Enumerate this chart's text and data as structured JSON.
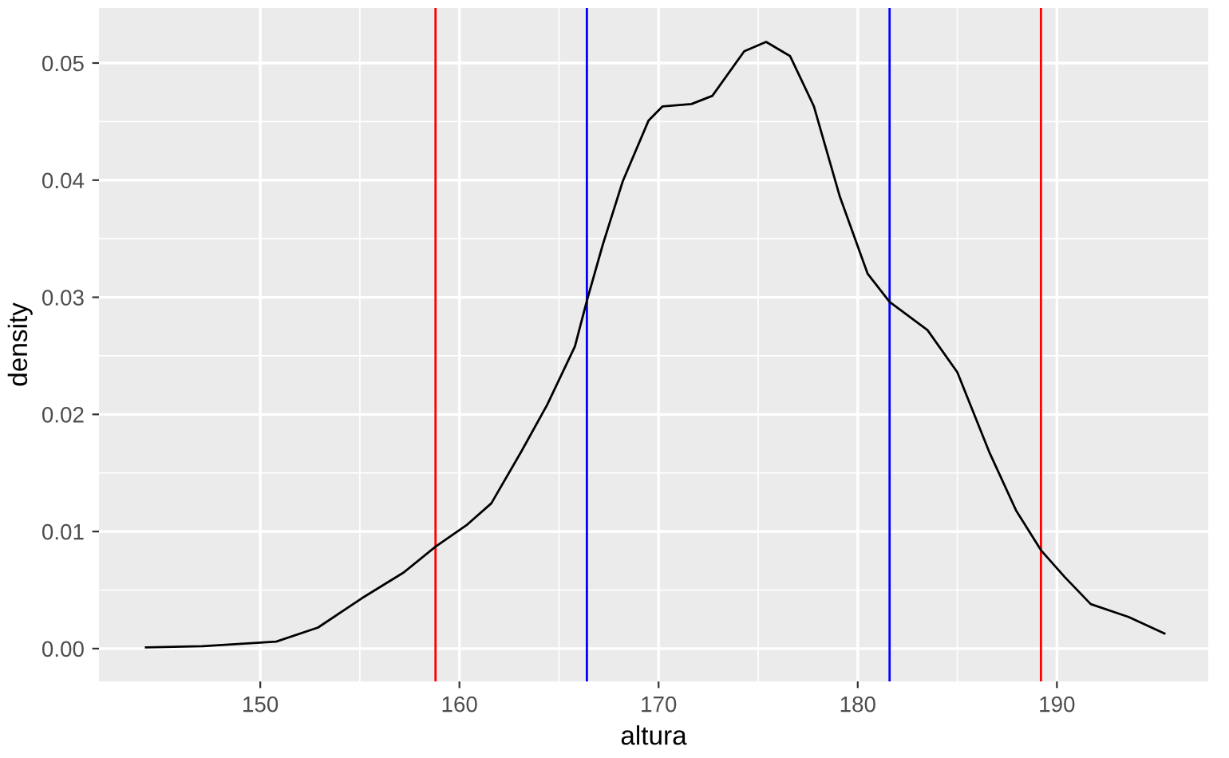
{
  "chart_data": {
    "type": "line",
    "xlabel": "altura",
    "ylabel": "density",
    "x": [
      144.26,
      147.07,
      150.8,
      152.9,
      155.1,
      157.2,
      158.8,
      160.4,
      161.6,
      163.1,
      164.4,
      165.8,
      166.4,
      167.2,
      168.2,
      169.5,
      170.2,
      171.65,
      172.7,
      174.3,
      175.4,
      176.6,
      177.8,
      179.1,
      180.5,
      181.6,
      183.5,
      185.0,
      186.6,
      187.95,
      189.2,
      190.4,
      191.7,
      193.6,
      195.4
    ],
    "series": [
      {
        "color": "#000000",
        "values": [
          0.0001,
          0.0002,
          0.0006,
          0.0018,
          0.0043,
          0.0065,
          0.0087,
          0.0106,
          0.0124,
          0.0168,
          0.0208,
          0.0258,
          0.0297,
          0.0345,
          0.0399,
          0.0451,
          0.0463,
          0.0465,
          0.0472,
          0.051,
          0.0518,
          0.0506,
          0.0463,
          0.0386,
          0.032,
          0.0296,
          0.0272,
          0.0236,
          0.0168,
          0.0118,
          0.0084,
          0.0061,
          0.0038,
          0.0027,
          0.0013
        ]
      }
    ],
    "xlim": [
      141.9,
      197.6
    ],
    "ylim": [
      -0.0028,
      0.0547
    ],
    "xticks": [
      150,
      160,
      170,
      180,
      190
    ],
    "yticks": [
      {
        "value": 0,
        "label": "0.00"
      },
      {
        "value": 0.01,
        "label": "0.01"
      },
      {
        "value": 0.02,
        "label": "0.02"
      },
      {
        "value": 0.03,
        "label": "0.03"
      },
      {
        "value": 0.04,
        "label": "0.04"
      },
      {
        "value": 0.05,
        "label": "0.05"
      }
    ],
    "grid": true,
    "ref_lines": [
      {
        "axis": "x",
        "value": 158.8,
        "color": "#ff0000"
      },
      {
        "axis": "x",
        "value": 166.4,
        "color": "#0000ff"
      },
      {
        "axis": "x",
        "value": 181.6,
        "color": "#0000ff"
      },
      {
        "axis": "x",
        "value": 189.2,
        "color": "#ff0000"
      }
    ]
  }
}
